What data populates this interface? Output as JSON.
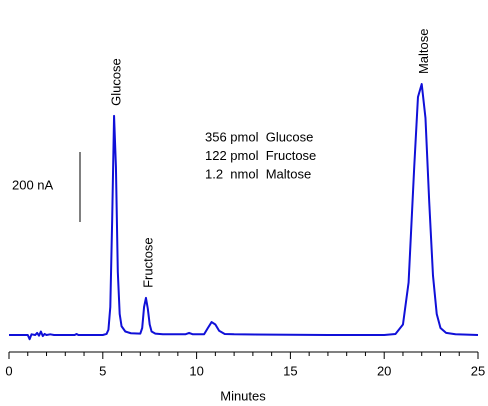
{
  "chart_data": {
    "type": "line",
    "xlabel": "Minutes",
    "x": [
      0,
      1.0,
      1.1,
      1.2,
      1.4,
      1.5,
      1.6,
      1.7,
      1.8,
      1.9,
      2.0,
      2.2,
      2.4,
      3.5,
      3.6,
      3.7,
      5.0,
      5.2,
      5.3,
      5.4,
      5.5,
      5.6,
      5.7,
      5.8,
      5.9,
      6.0,
      6.2,
      6.5,
      7.0,
      7.1,
      7.2,
      7.3,
      7.4,
      7.5,
      7.6,
      7.8,
      8.2,
      9.4,
      9.6,
      9.8,
      10.4,
      10.6,
      10.8,
      11.0,
      11.2,
      11.5,
      12,
      14,
      17,
      20,
      20.6,
      21.0,
      21.3,
      21.6,
      21.8,
      22.0,
      22.2,
      22.4,
      22.6,
      22.8,
      23.0,
      23.3,
      23.8,
      25
    ],
    "series": [
      {
        "color": "#1010d8",
        "values": [
          0,
          0,
          -12,
          2,
          0,
          6,
          -2,
          10,
          -3,
          3,
          0,
          2,
          0,
          0,
          3,
          0,
          0,
          3,
          15,
          80,
          330,
          626,
          480,
          180,
          60,
          25,
          10,
          5,
          4,
          20,
          80,
          106,
          75,
          30,
          10,
          4,
          2,
          2,
          6,
          2,
          2,
          20,
          37,
          30,
          12,
          3,
          2,
          1,
          0,
          0,
          3,
          30,
          150,
          480,
          680,
          717,
          620,
          380,
          170,
          60,
          20,
          6,
          2,
          0
        ]
      }
    ],
    "xlim": [
      0,
      25
    ],
    "xticks": [
      0,
      5,
      10,
      15,
      20,
      25
    ],
    "xminorticks": [
      1,
      2,
      3,
      4,
      6,
      7,
      8,
      9,
      11,
      12,
      13,
      14,
      16,
      17,
      18,
      19,
      21,
      22,
      23,
      24
    ],
    "scale_bar": {
      "value": 200,
      "label": "200 nA"
    },
    "peak_labels": [
      {
        "text": "Glucose",
        "x": 5.6
      },
      {
        "text": "Fructose",
        "x": 7.3
      },
      {
        "text": "Maltose",
        "x": 22.0
      }
    ],
    "notes": [
      "356 pmol  Glucose",
      "122 pmol  Fructose",
      "1.2  nmol  Maltose"
    ]
  }
}
